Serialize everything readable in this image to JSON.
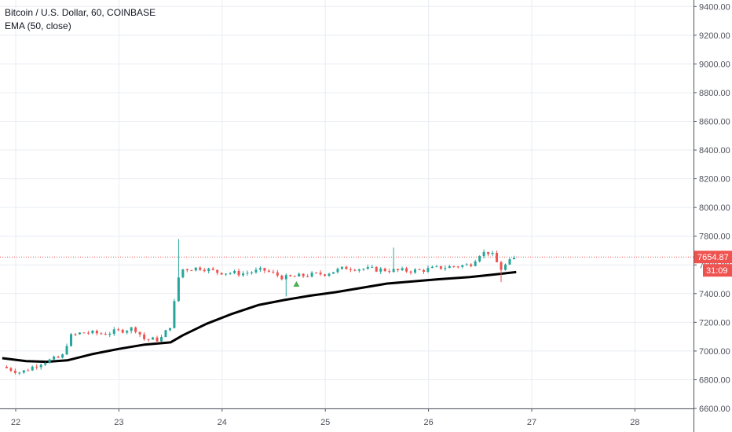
{
  "chart_data": {
    "type": "candlestick",
    "title": "Bitcoin / U.S. Dollar, 60, COINBASE",
    "indicator": "EMA (50, close)",
    "ylim": [
      6600,
      9500
    ],
    "y_ticks": [
      6600,
      6800,
      7000,
      7200,
      7400,
      7600,
      7800,
      8000,
      8200,
      8400,
      8600,
      8800,
      9000,
      9200,
      9400
    ],
    "y_tick_labels": [
      "6600.00",
      "6800.00",
      "7000.00",
      "7200.00",
      "7400.00",
      "7600.00",
      "7800.00",
      "8000.00",
      "8200.00",
      "8400.00",
      "8600.00",
      "8800.00",
      "9000.00",
      "9200.00",
      "9400.00"
    ],
    "xlim": [
      21.87,
      28.6
    ],
    "x_ticks": [
      22,
      23,
      24,
      25,
      26,
      27,
      28
    ],
    "x_tick_labels": [
      "22",
      "23",
      "24",
      "25",
      "26",
      "27",
      "28"
    ],
    "current_price": 7654.87,
    "current_price_label": "7654.87",
    "countdown_label": "31:09",
    "grid": true,
    "colors": {
      "up": "#26a69a",
      "down": "#ef5350",
      "ema": "#000000",
      "price_line": "#ef5350",
      "grid": "#e9ecf2",
      "text": "#131722"
    },
    "candle_anchors": [
      {
        "t": 21.87,
        "p": 6890
      },
      {
        "t": 22.05,
        "p": 6850
      },
      {
        "t": 22.25,
        "p": 6920
      },
      {
        "t": 22.45,
        "p": 6960
      },
      {
        "t": 22.52,
        "p": 7100
      },
      {
        "t": 22.65,
        "p": 7130
      },
      {
        "t": 22.85,
        "p": 7120
      },
      {
        "t": 23.0,
        "p": 7140
      },
      {
        "t": 23.15,
        "p": 7160
      },
      {
        "t": 23.25,
        "p": 7080
      },
      {
        "t": 23.4,
        "p": 7080
      },
      {
        "t": 23.5,
        "p": 7180
      },
      {
        "t": 23.58,
        "p": 7520
      },
      {
        "t": 23.62,
        "p": 7570
      },
      {
        "t": 23.8,
        "p": 7580
      },
      {
        "t": 23.95,
        "p": 7550
      },
      {
        "t": 24.2,
        "p": 7540
      },
      {
        "t": 24.4,
        "p": 7565
      },
      {
        "t": 24.6,
        "p": 7510
      },
      {
        "t": 24.85,
        "p": 7530
      },
      {
        "t": 25.0,
        "p": 7540
      },
      {
        "t": 25.2,
        "p": 7580
      },
      {
        "t": 25.45,
        "p": 7570
      },
      {
        "t": 25.7,
        "p": 7560
      },
      {
        "t": 25.9,
        "p": 7560
      },
      {
        "t": 26.1,
        "p": 7580
      },
      {
        "t": 26.4,
        "p": 7600
      },
      {
        "t": 26.5,
        "p": 7680
      },
      {
        "t": 26.6,
        "p": 7690
      },
      {
        "t": 26.7,
        "p": 7570
      },
      {
        "t": 26.78,
        "p": 7620
      },
      {
        "t": 26.85,
        "p": 7655
      }
    ],
    "ema_series": [
      {
        "t": 21.87,
        "p": 6950
      },
      {
        "t": 22.1,
        "p": 6930
      },
      {
        "t": 22.3,
        "p": 6925
      },
      {
        "t": 22.5,
        "p": 6935
      },
      {
        "t": 22.75,
        "p": 6980
      },
      {
        "t": 23.0,
        "p": 7015
      },
      {
        "t": 23.25,
        "p": 7045
      },
      {
        "t": 23.5,
        "p": 7060
      },
      {
        "t": 23.62,
        "p": 7110
      },
      {
        "t": 23.85,
        "p": 7190
      },
      {
        "t": 24.1,
        "p": 7260
      },
      {
        "t": 24.35,
        "p": 7320
      },
      {
        "t": 24.6,
        "p": 7355
      },
      {
        "t": 24.85,
        "p": 7385
      },
      {
        "t": 25.1,
        "p": 7410
      },
      {
        "t": 25.35,
        "p": 7440
      },
      {
        "t": 25.6,
        "p": 7470
      },
      {
        "t": 25.85,
        "p": 7485
      },
      {
        "t": 26.1,
        "p": 7500
      },
      {
        "t": 26.4,
        "p": 7515
      },
      {
        "t": 26.6,
        "p": 7530
      },
      {
        "t": 26.85,
        "p": 7550
      }
    ]
  }
}
